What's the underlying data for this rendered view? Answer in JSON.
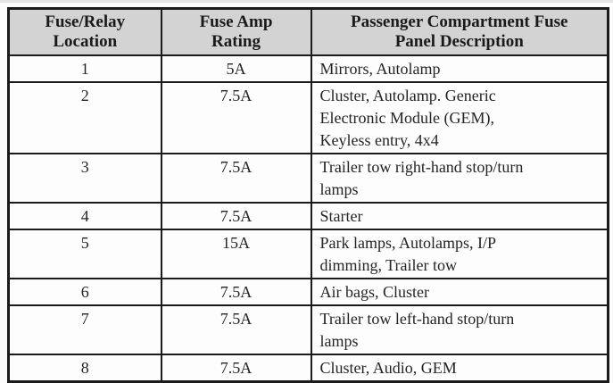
{
  "colors": {
    "header_bg": "#d3d3d3",
    "border_color": "#1b1b1b",
    "text_color": "#242424",
    "page_bg": "#fcfcfc"
  },
  "table": {
    "headers": [
      {
        "label": "Fuse/Relay\nLocation"
      },
      {
        "label": "Fuse Amp\nRating"
      },
      {
        "label": "Passenger Compartment Fuse\nPanel Description"
      }
    ],
    "rows": [
      {
        "location": "1",
        "rating": "5A",
        "description": "Mirrors, Autolamp"
      },
      {
        "location": "2",
        "rating": "7.5A",
        "description": "Cluster, Autolamp. Generic\nElectronic Module (GEM),\nKeyless entry, 4x4"
      },
      {
        "location": "3",
        "rating": "7.5A",
        "description": "Trailer tow right-hand stop/turn\nlamps"
      },
      {
        "location": "4",
        "rating": "7.5A",
        "description": "Starter"
      },
      {
        "location": "5",
        "rating": "15A",
        "description": "Park lamps, Autolamps, I/P\ndimming, Trailer tow"
      },
      {
        "location": "6",
        "rating": "7.5A",
        "description": "Air bags, Cluster"
      },
      {
        "location": "7",
        "rating": "7.5A",
        "description": "Trailer tow left-hand stop/turn\nlamps"
      },
      {
        "location": "8",
        "rating": "7.5A",
        "description": "Cluster, Audio, GEM"
      }
    ]
  }
}
